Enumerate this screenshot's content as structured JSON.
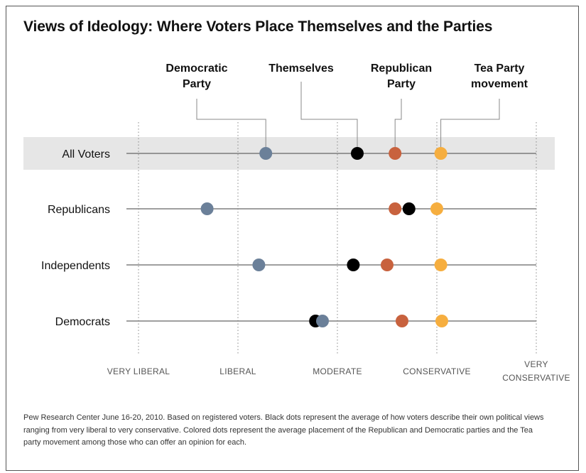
{
  "title": "Views of Ideology: Where Voters Place Themselves and the Parties",
  "source_note": "Pew Research Center June 16-20, 2010. Based on registered voters. Black dots represent the average of how voters describe their own political views ranging from very liberal to very conservative. Colored dots represent the average placement of the Republican and Democratic parties and the Tea party movement among those who can offer an opinion for each.",
  "colors": {
    "democratic_party": "#6b8099",
    "themselves": "#000000",
    "republican_party": "#c8623e",
    "tea_party": "#f6ae3f",
    "highlight_band": "#e6e6e6"
  },
  "chart_data": {
    "type": "scatter",
    "xlim": [
      1,
      5
    ],
    "ticks": [
      {
        "value": 1,
        "label": "VERY LIBERAL"
      },
      {
        "value": 2,
        "label": "LIBERAL"
      },
      {
        "value": 3,
        "label": "MODERATE"
      },
      {
        "value": 4,
        "label": "CONSERVATIVE"
      },
      {
        "value": 5,
        "label": "VERY CONSERVATIVE"
      }
    ],
    "series": [
      {
        "name": "Democratic Party",
        "key": "democratic_party"
      },
      {
        "name": "Themselves",
        "key": "themselves"
      },
      {
        "name": "Republican Party",
        "key": "republican_party"
      },
      {
        "name": "Tea Party movement",
        "key": "tea_party"
      }
    ],
    "rows": [
      {
        "label": "All Voters",
        "highlight": true,
        "values": {
          "democratic_party": 2.28,
          "themselves": 3.2,
          "republican_party": 3.58,
          "tea_party": 4.04
        }
      },
      {
        "label": "Republicans",
        "highlight": false,
        "values": {
          "democratic_party": 1.69,
          "themselves": 3.72,
          "republican_party": 3.58,
          "tea_party": 4.0
        }
      },
      {
        "label": "Independents",
        "highlight": false,
        "values": {
          "democratic_party": 2.21,
          "themselves": 3.16,
          "republican_party": 3.5,
          "tea_party": 4.04
        }
      },
      {
        "label": "Democrats",
        "highlight": false,
        "values": {
          "democratic_party": 2.85,
          "themselves": 2.78,
          "republican_party": 3.65,
          "tea_party": 4.05
        }
      }
    ]
  }
}
